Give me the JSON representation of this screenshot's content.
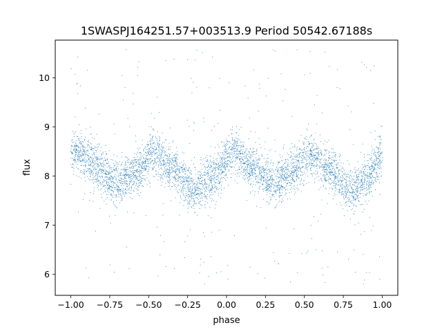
{
  "chart_data": {
    "type": "scatter",
    "title": "1SWASPJ164251.57+003513.9 Period 50542.67188s",
    "xlabel": "phase",
    "ylabel": "flux",
    "xlim": [
      -1.1,
      1.1
    ],
    "ylim": [
      5.57,
      10.77
    ],
    "xticks": [
      -1.0,
      -0.75,
      -0.5,
      -0.25,
      0.0,
      0.25,
      0.5,
      0.75,
      1.0
    ],
    "xtick_labels": [
      "−1.00",
      "−0.75",
      "−0.50",
      "−0.25",
      "0.00",
      "0.25",
      "0.50",
      "0.75",
      "1.00"
    ],
    "yticks": [
      6,
      7,
      8,
      9,
      10
    ],
    "ytick_labels": [
      "6",
      "7",
      "8",
      "9",
      "10"
    ],
    "grid": false,
    "marker_color": "#1f77b4",
    "model": {
      "description_of_shape": "double-humped periodic light curve; maxima near phase ~0.05 and ~-0.45 (and +/-1), minima near ~-0.7, ~-0.2, ~0.3, ~0.8",
      "mean_flux": 8.15,
      "keypoints_phase": [
        -1.0,
        -0.95,
        -0.85,
        -0.7,
        -0.6,
        -0.45,
        -0.35,
        -0.2,
        -0.1,
        0.05,
        0.15,
        0.3,
        0.4,
        0.55,
        0.65,
        0.8,
        0.9,
        1.0
      ],
      "keypoints_flux": [
        8.45,
        8.5,
        8.2,
        7.85,
        8.05,
        8.45,
        8.15,
        7.72,
        7.95,
        8.5,
        8.2,
        7.85,
        8.05,
        8.45,
        8.15,
        7.72,
        7.95,
        8.45
      ],
      "scatter_sigma": 0.22,
      "n_points": 5200,
      "outlier_fraction": 0.05
    }
  }
}
